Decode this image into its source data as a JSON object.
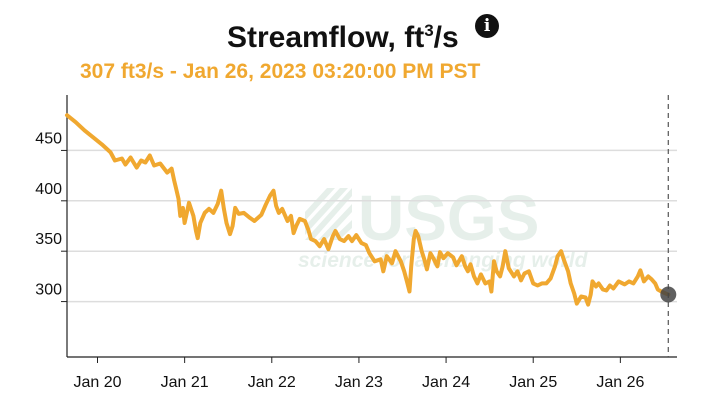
{
  "header": {
    "title_main": "Streamflow, ft",
    "title_sup": "3",
    "title_end": "/s",
    "info_icon": "info-icon",
    "subtitle": "307 ft3/s - Jan 26, 2023 03:20:00 PM PST"
  },
  "watermark": {
    "logo": "USGS",
    "tagline": "science for a changing world"
  },
  "colors": {
    "line": "#f0a830",
    "grid": "#dddddd",
    "marker": "#444444"
  },
  "chart_data": {
    "type": "line",
    "title": "Streamflow, ft3/s",
    "xlabel": "",
    "ylabel": "",
    "x_unit": "days since Jan 20, 2023 00:00",
    "xlim": [
      -0.35,
      6.65
    ],
    "ylim": [
      245,
      505
    ],
    "yticks": [
      300,
      350,
      400,
      450
    ],
    "xticks": [
      {
        "label": "Jan 20",
        "x": 0
      },
      {
        "label": "Jan 21",
        "x": 1
      },
      {
        "label": "Jan 22",
        "x": 2
      },
      {
        "label": "Jan 23",
        "x": 3
      },
      {
        "label": "Jan 24",
        "x": 4
      },
      {
        "label": "Jan 25",
        "x": 5
      },
      {
        "label": "Jan 26",
        "x": 6
      }
    ],
    "grid": true,
    "series": [
      {
        "name": "Streamflow",
        "points": [
          [
            -0.35,
            485
          ],
          [
            -0.25,
            478
          ],
          [
            -0.15,
            470
          ],
          [
            -0.05,
            463
          ],
          [
            0.05,
            456
          ],
          [
            0.15,
            448
          ],
          [
            0.2,
            440
          ],
          [
            0.28,
            442
          ],
          [
            0.32,
            436
          ],
          [
            0.38,
            443
          ],
          [
            0.45,
            433
          ],
          [
            0.5,
            440
          ],
          [
            0.55,
            438
          ],
          [
            0.6,
            445
          ],
          [
            0.65,
            435
          ],
          [
            0.72,
            437
          ],
          [
            0.8,
            428
          ],
          [
            0.85,
            432
          ],
          [
            0.88,
            420
          ],
          [
            0.9,
            413
          ],
          [
            0.93,
            402
          ],
          [
            0.95,
            385
          ],
          [
            0.98,
            393
          ],
          [
            1.0,
            378
          ],
          [
            1.05,
            398
          ],
          [
            1.1,
            385
          ],
          [
            1.13,
            370
          ],
          [
            1.15,
            363
          ],
          [
            1.18,
            378
          ],
          [
            1.23,
            388
          ],
          [
            1.28,
            392
          ],
          [
            1.33,
            388
          ],
          [
            1.38,
            397
          ],
          [
            1.42,
            410
          ],
          [
            1.45,
            392
          ],
          [
            1.48,
            378
          ],
          [
            1.52,
            367
          ],
          [
            1.55,
            375
          ],
          [
            1.58,
            393
          ],
          [
            1.62,
            387
          ],
          [
            1.68,
            388
          ],
          [
            1.75,
            383
          ],
          [
            1.8,
            380
          ],
          [
            1.88,
            386
          ],
          [
            1.93,
            396
          ],
          [
            1.98,
            405
          ],
          [
            2.02,
            410
          ],
          [
            2.05,
            395
          ],
          [
            2.08,
            388
          ],
          [
            2.12,
            392
          ],
          [
            2.18,
            380
          ],
          [
            2.22,
            385
          ],
          [
            2.25,
            368
          ],
          [
            2.28,
            375
          ],
          [
            2.32,
            382
          ],
          [
            2.38,
            380
          ],
          [
            2.42,
            371
          ],
          [
            2.45,
            362
          ],
          [
            2.5,
            360
          ],
          [
            2.55,
            355
          ],
          [
            2.6,
            362
          ],
          [
            2.65,
            352
          ],
          [
            2.7,
            365
          ],
          [
            2.73,
            370
          ],
          [
            2.78,
            362
          ],
          [
            2.83,
            360
          ],
          [
            2.88,
            365
          ],
          [
            2.92,
            360
          ],
          [
            2.97,
            366
          ],
          [
            3.03,
            358
          ],
          [
            3.08,
            356
          ],
          [
            3.12,
            348
          ],
          [
            3.18,
            340
          ],
          [
            3.25,
            342
          ],
          [
            3.28,
            330
          ],
          [
            3.32,
            345
          ],
          [
            3.38,
            338
          ],
          [
            3.42,
            350
          ],
          [
            3.45,
            345
          ],
          [
            3.48,
            340
          ],
          [
            3.52,
            330
          ],
          [
            3.55,
            320
          ],
          [
            3.58,
            310
          ],
          [
            3.6,
            335
          ],
          [
            3.63,
            362
          ],
          [
            3.65,
            370
          ],
          [
            3.68,
            365
          ],
          [
            3.72,
            350
          ],
          [
            3.75,
            342
          ],
          [
            3.78,
            332
          ],
          [
            3.82,
            348
          ],
          [
            3.86,
            342
          ],
          [
            3.9,
            335
          ],
          [
            3.93,
            349
          ],
          [
            3.97,
            343
          ],
          [
            4.02,
            348
          ],
          [
            4.08,
            344
          ],
          [
            4.12,
            336
          ],
          [
            4.18,
            345
          ],
          [
            4.22,
            335
          ],
          [
            4.25,
            330
          ],
          [
            4.28,
            337
          ],
          [
            4.32,
            325
          ],
          [
            4.36,
            318
          ],
          [
            4.4,
            327
          ],
          [
            4.45,
            318
          ],
          [
            4.5,
            320
          ],
          [
            4.52,
            310
          ],
          [
            4.55,
            340
          ],
          [
            4.58,
            330
          ],
          [
            4.62,
            325
          ],
          [
            4.65,
            335
          ],
          [
            4.68,
            350
          ],
          [
            4.72,
            333
          ],
          [
            4.78,
            325
          ],
          [
            4.82,
            330
          ],
          [
            4.86,
            321
          ],
          [
            4.9,
            328
          ],
          [
            4.95,
            330
          ],
          [
            5.0,
            318
          ],
          [
            5.05,
            316
          ],
          [
            5.1,
            318
          ],
          [
            5.15,
            318
          ],
          [
            5.2,
            323
          ],
          [
            5.25,
            335
          ],
          [
            5.28,
            345
          ],
          [
            5.32,
            350
          ],
          [
            5.35,
            342
          ],
          [
            5.4,
            330
          ],
          [
            5.43,
            318
          ],
          [
            5.47,
            308
          ],
          [
            5.5,
            298
          ],
          [
            5.55,
            305
          ],
          [
            5.6,
            304
          ],
          [
            5.63,
            297
          ],
          [
            5.66,
            307
          ],
          [
            5.68,
            320
          ],
          [
            5.72,
            315
          ],
          [
            5.75,
            318
          ],
          [
            5.8,
            312
          ],
          [
            5.84,
            311
          ],
          [
            5.88,
            316
          ],
          [
            5.92,
            313
          ],
          [
            5.98,
            320
          ],
          [
            6.05,
            317
          ],
          [
            6.1,
            320
          ],
          [
            6.15,
            318
          ],
          [
            6.2,
            325
          ],
          [
            6.23,
            331
          ],
          [
            6.27,
            320
          ],
          [
            6.32,
            325
          ],
          [
            6.36,
            322
          ],
          [
            6.4,
            318
          ],
          [
            6.43,
            312
          ],
          [
            6.47,
            310
          ],
          [
            6.52,
            308
          ],
          [
            6.55,
            307
          ]
        ]
      }
    ],
    "current_point": {
      "x": 6.55,
      "y": 307
    },
    "current_line_x": 6.55
  }
}
